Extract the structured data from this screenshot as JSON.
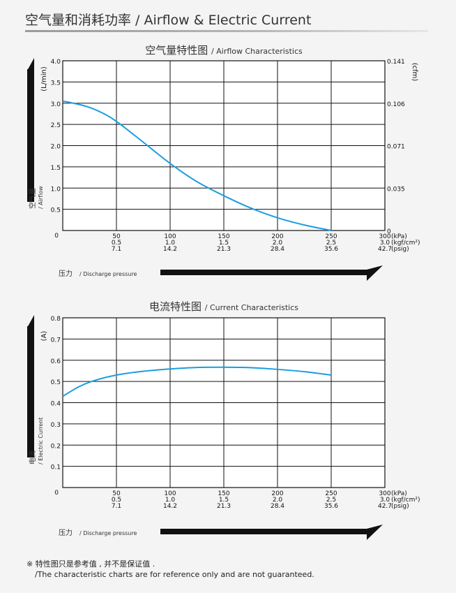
{
  "header": {
    "title": "空气量和消耗功率 / Airflow & Electric Current"
  },
  "footnote": {
    "line1": "※ 特性图只是参考值 , 并不是保证值 .",
    "line2": "/The characteristic charts are for reference only and are not guaranteed."
  },
  "colors": {
    "curve": "#1a9ee0",
    "grid": "#111111",
    "arrow": "#111111",
    "background": "#f4f4f4"
  },
  "chart_data": [
    {
      "type": "line",
      "title_cn": "空气量特性图",
      "title_en": "/ Airflow Characteristics",
      "y_unit": "(L/min)",
      "y_label_cn": "空气量",
      "y_label_en": "/ Airflow",
      "y2_unit": "(cfm)",
      "x_label_cn": "压力",
      "x_label_en": "/ Discharge pressure",
      "x_units": [
        "(kPa)",
        "(kgf/cm²)",
        "(psig)"
      ],
      "x_ticks": [
        {
          "kpa": "0",
          "kgf": "",
          "psig": ""
        },
        {
          "kpa": "50",
          "kgf": "0.5",
          "psig": "7.1"
        },
        {
          "kpa": "100",
          "kgf": "1.0",
          "psig": "14.2"
        },
        {
          "kpa": "150",
          "kgf": "1.5",
          "psig": "21.3"
        },
        {
          "kpa": "200",
          "kgf": "2.0",
          "psig": "28.4"
        },
        {
          "kpa": "250",
          "kgf": "2.5",
          "psig": "35.6"
        },
        {
          "kpa": "300",
          "kgf": "3.0",
          "psig": "42.7"
        }
      ],
      "y_ticks": [
        "0.5",
        "1.0",
        "1.5",
        "2.0",
        "2.5",
        "3.0",
        "3.5",
        "4.0"
      ],
      "y2_ticks": [
        {
          "value": 0,
          "label": "0"
        },
        {
          "value": 1,
          "label": "0.035"
        },
        {
          "value": 2,
          "label": "0.071"
        },
        {
          "value": 3,
          "label": "0.106"
        },
        {
          "value": 4,
          "label": "0.141"
        }
      ],
      "xlim": [
        0,
        300
      ],
      "ylim": [
        0,
        4
      ],
      "grid": true,
      "series": [
        {
          "x": [
            0,
            10,
            25,
            40,
            50,
            60,
            75,
            100,
            125,
            150,
            175,
            200,
            225,
            250
          ],
          "values": [
            3.05,
            3.0,
            2.9,
            2.73,
            2.57,
            2.38,
            2.08,
            1.58,
            1.15,
            0.82,
            0.53,
            0.3,
            0.13,
            0.0
          ]
        }
      ]
    },
    {
      "type": "line",
      "title_cn": "电流特性图",
      "title_en": "/ Current Characteristics",
      "y_unit": "(A)",
      "y_label_cn": "电流",
      "y_label_en": "/ Electric Current",
      "x_label_cn": "压力",
      "x_label_en": "/ Discharge pressure",
      "x_units": [
        "(kPa)",
        "(kgf/cm²)",
        "(psig)"
      ],
      "x_ticks": [
        {
          "kpa": "0",
          "kgf": "",
          "psig": ""
        },
        {
          "kpa": "50",
          "kgf": "0.5",
          "psig": "7.1"
        },
        {
          "kpa": "100",
          "kgf": "1.0",
          "psig": "14.2"
        },
        {
          "kpa": "150",
          "kgf": "1.5",
          "psig": "21.3"
        },
        {
          "kpa": "200",
          "kgf": "2.0",
          "psig": "28.4"
        },
        {
          "kpa": "250",
          "kgf": "2.5",
          "psig": "35.6"
        },
        {
          "kpa": "300",
          "kgf": "3.0",
          "psig": "42.7"
        }
      ],
      "y_ticks": [
        "0.1",
        "0.2",
        "0.3",
        "0.4",
        "0.5",
        "0.6",
        "0.7",
        "0.8"
      ],
      "xlim": [
        0,
        300
      ],
      "ylim": [
        0,
        0.8
      ],
      "grid": true,
      "series": [
        {
          "x": [
            0,
            15,
            30,
            50,
            75,
            100,
            125,
            150,
            175,
            200,
            225,
            250
          ],
          "values": [
            0.43,
            0.475,
            0.505,
            0.53,
            0.548,
            0.559,
            0.566,
            0.567,
            0.565,
            0.557,
            0.546,
            0.53
          ]
        }
      ]
    }
  ]
}
